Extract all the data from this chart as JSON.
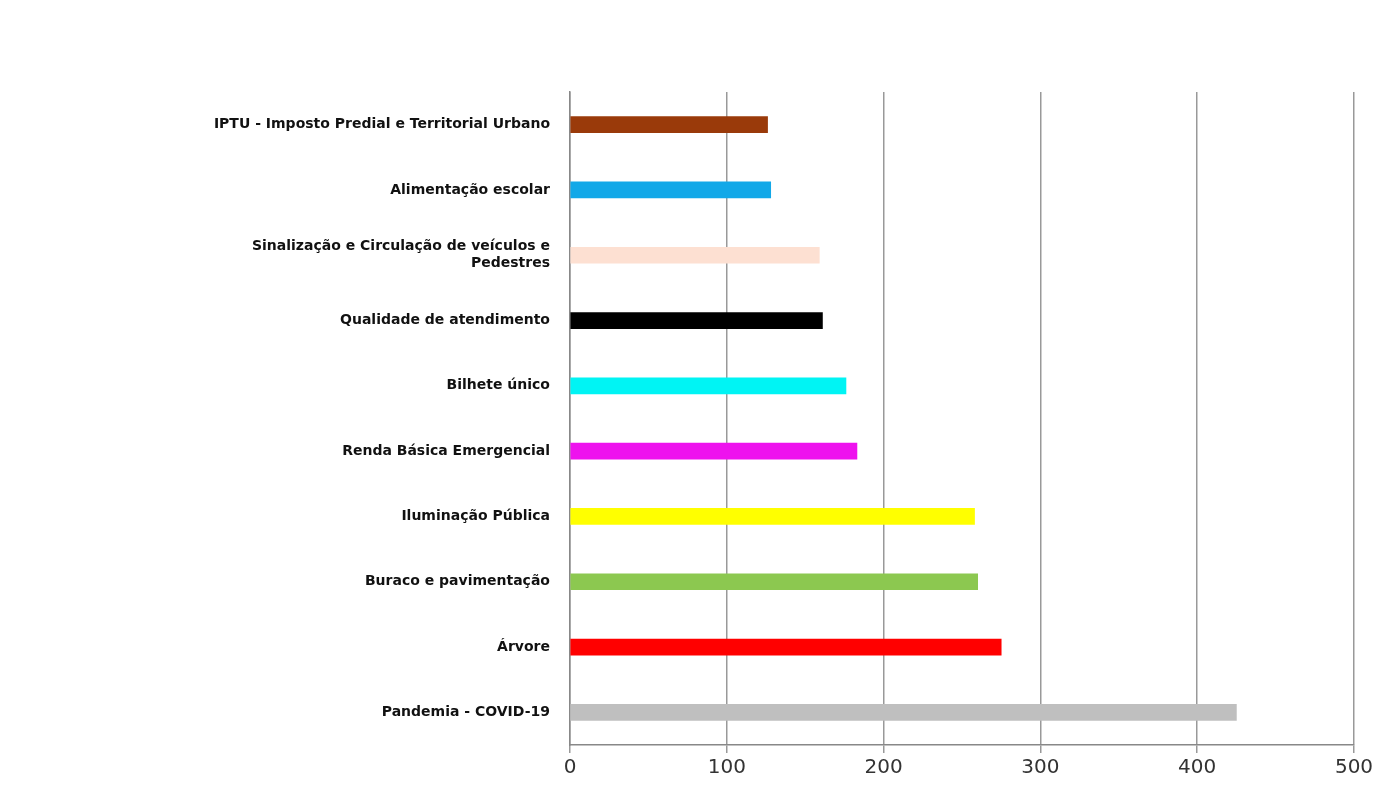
{
  "chart_data": {
    "type": "bar",
    "orientation": "horizontal",
    "categories": [
      "IPTU - Imposto Predial e Territorial Urbano",
      "Alimentação escolar",
      "Sinalização e Circulação de veículos e Pedestres",
      "Qualidade de atendimento",
      "Bilhete único",
      "Renda Básica Emergencial",
      "Iluminação Pública",
      "Buraco e pavimentação",
      "Árvore",
      "Pandemia - COVID-19"
    ],
    "values": [
      126,
      128,
      159,
      161,
      176,
      183,
      258,
      260,
      275,
      425
    ],
    "colors": [
      "#9a3a0a",
      "#12a8e8",
      "#fde0d2",
      "#000000",
      "#00f4f4",
      "#ee12ee",
      "#ffff00",
      "#8cc850",
      "#ff0000",
      "#bfbfbf"
    ],
    "xlim": [
      0,
      500
    ],
    "xticks": [
      0,
      100,
      200,
      300,
      400,
      500
    ],
    "grid": "x"
  }
}
